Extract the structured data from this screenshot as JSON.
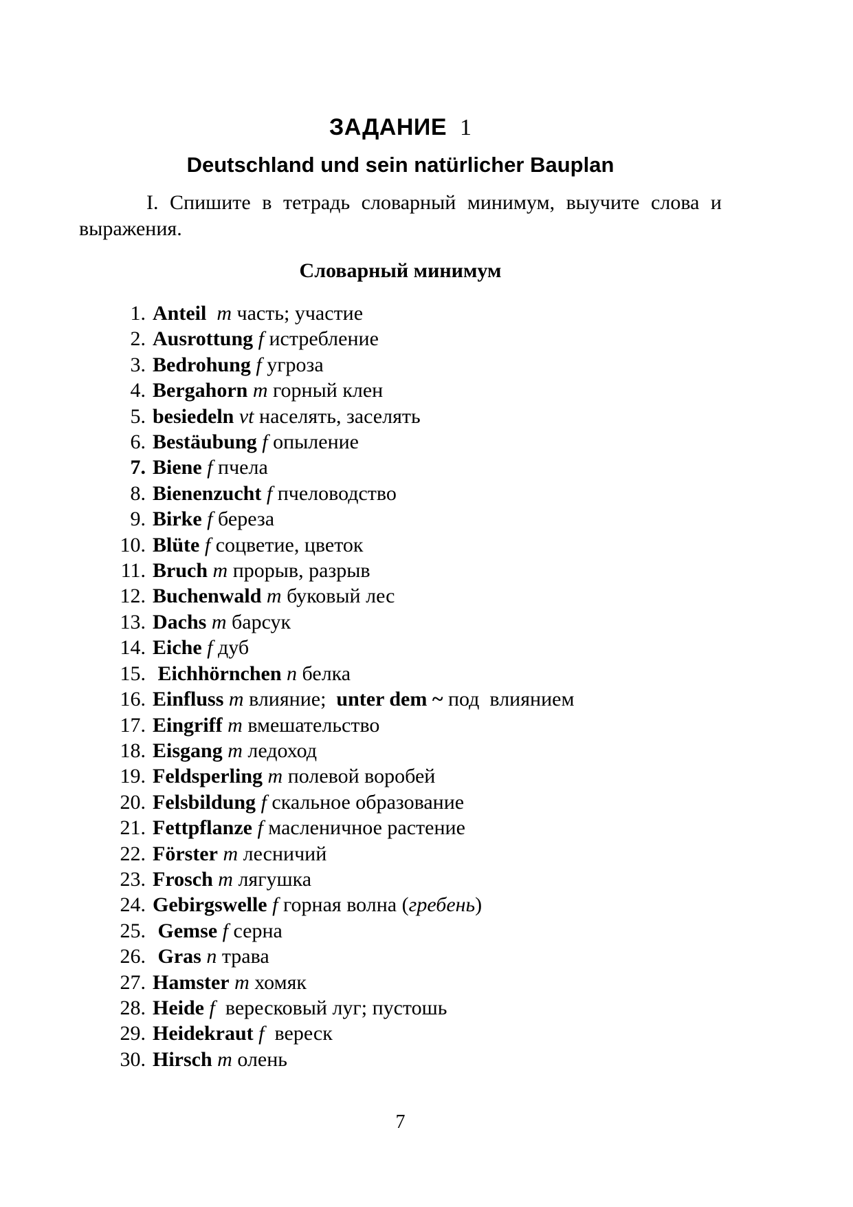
{
  "document": {
    "task_heading": {
      "label": "ЗАДАНИЕ",
      "number": "1"
    },
    "subtitle": "Deutschland und sein natürlicher Bauplan",
    "instruction": {
      "lines": [
        "I. Спишите в тетрадь словарный минимум, выучите слова и",
        "выражения."
      ]
    },
    "section_title": "Словарный минимум",
    "page_number": "7"
  },
  "vocabulary": {
    "items": [
      {
        "num": "1.",
        "num_bold": false,
        "runs": [
          [
            "b",
            "Anteil"
          ],
          [
            "r",
            "  "
          ],
          [
            "i",
            "m"
          ],
          [
            "r",
            " часть; участие"
          ]
        ]
      },
      {
        "num": "2.",
        "num_bold": false,
        "runs": [
          [
            "b",
            "Ausrottung"
          ],
          [
            "r",
            " "
          ],
          [
            "i",
            "f"
          ],
          [
            "r",
            " истребление"
          ]
        ]
      },
      {
        "num": "3.",
        "num_bold": false,
        "runs": [
          [
            "b",
            "Bedrohung"
          ],
          [
            "r",
            " "
          ],
          [
            "i",
            "f"
          ],
          [
            "r",
            " угроза"
          ]
        ]
      },
      {
        "num": "4.",
        "num_bold": false,
        "runs": [
          [
            "b",
            "Bergahorn"
          ],
          [
            "r",
            " "
          ],
          [
            "i",
            "m"
          ],
          [
            "r",
            " горный клен"
          ]
        ]
      },
      {
        "num": "5.",
        "num_bold": false,
        "runs": [
          [
            "b",
            "besiedeln"
          ],
          [
            "r",
            " "
          ],
          [
            "i",
            "vt"
          ],
          [
            "r",
            " населять, заселять"
          ]
        ]
      },
      {
        "num": "6.",
        "num_bold": false,
        "runs": [
          [
            "b",
            "Bestäubung"
          ],
          [
            "r",
            " "
          ],
          [
            "i",
            "f"
          ],
          [
            "r",
            " опыление"
          ]
        ]
      },
      {
        "num": "7.",
        "num_bold": true,
        "runs": [
          [
            "b",
            "Biene"
          ],
          [
            "r",
            " "
          ],
          [
            "i",
            "f"
          ],
          [
            "r",
            " пчела"
          ]
        ]
      },
      {
        "num": "8.",
        "num_bold": false,
        "runs": [
          [
            "b",
            "Bienenzucht"
          ],
          [
            "r",
            " "
          ],
          [
            "i",
            "f"
          ],
          [
            "r",
            " пчеловодство"
          ]
        ]
      },
      {
        "num": "9.",
        "num_bold": false,
        "runs": [
          [
            "b",
            "Birke"
          ],
          [
            "r",
            " "
          ],
          [
            "i",
            "f"
          ],
          [
            "r",
            " береза"
          ]
        ]
      },
      {
        "num": "10.",
        "num_bold": false,
        "runs": [
          [
            "b",
            "Blüte"
          ],
          [
            "r",
            " "
          ],
          [
            "i",
            "f"
          ],
          [
            "r",
            " соцветие, цветок"
          ]
        ]
      },
      {
        "num": "11.",
        "num_bold": false,
        "runs": [
          [
            "b",
            "Bruch"
          ],
          [
            "r",
            " "
          ],
          [
            "i",
            "m"
          ],
          [
            "r",
            " прорыв, разрыв"
          ]
        ]
      },
      {
        "num": "12.",
        "num_bold": false,
        "runs": [
          [
            "b",
            "Buchenwald"
          ],
          [
            "r",
            " "
          ],
          [
            "i",
            "m"
          ],
          [
            "r",
            " буковый лес"
          ]
        ]
      },
      {
        "num": "13.",
        "num_bold": false,
        "runs": [
          [
            "b",
            "Dachs"
          ],
          [
            "r",
            " "
          ],
          [
            "i",
            "m"
          ],
          [
            "r",
            " барсук"
          ]
        ]
      },
      {
        "num": "14.",
        "num_bold": false,
        "runs": [
          [
            "b",
            "Eiche"
          ],
          [
            "r",
            " "
          ],
          [
            "i",
            "f"
          ],
          [
            "r",
            " дуб"
          ]
        ]
      },
      {
        "num": "15.",
        "num_bold": false,
        "runs": [
          [
            "r",
            " "
          ],
          [
            "b",
            "Eichhörnchen"
          ],
          [
            "r",
            " "
          ],
          [
            "i",
            "n"
          ],
          [
            "r",
            " белка"
          ]
        ]
      },
      {
        "num": "16.",
        "num_bold": false,
        "runs": [
          [
            "b",
            "Einfluss"
          ],
          [
            "r",
            " "
          ],
          [
            "i",
            "m"
          ],
          [
            "r",
            " влияние;  "
          ],
          [
            "b",
            "unter dem ~"
          ],
          [
            "r",
            " под  влиянием"
          ]
        ]
      },
      {
        "num": "17.",
        "num_bold": false,
        "runs": [
          [
            "b",
            "Eingriff"
          ],
          [
            "r",
            " "
          ],
          [
            "i",
            "m"
          ],
          [
            "r",
            " вмешательство"
          ]
        ]
      },
      {
        "num": "18.",
        "num_bold": false,
        "runs": [
          [
            "b",
            "Eisgang"
          ],
          [
            "r",
            " "
          ],
          [
            "i",
            "m"
          ],
          [
            "r",
            " ледоход"
          ]
        ]
      },
      {
        "num": "19.",
        "num_bold": false,
        "runs": [
          [
            "b",
            "Feldsperling"
          ],
          [
            "r",
            " "
          ],
          [
            "i",
            "m"
          ],
          [
            "r",
            " полевой воробей"
          ]
        ]
      },
      {
        "num": "20.",
        "num_bold": false,
        "runs": [
          [
            "b",
            "Felsbildung"
          ],
          [
            "r",
            " "
          ],
          [
            "i",
            "f"
          ],
          [
            "r",
            " скальное образование"
          ]
        ]
      },
      {
        "num": "21.",
        "num_bold": false,
        "runs": [
          [
            "b",
            "Fettpflanze"
          ],
          [
            "r",
            " "
          ],
          [
            "i",
            "f"
          ],
          [
            "r",
            " масленичное растение"
          ]
        ]
      },
      {
        "num": "22.",
        "num_bold": false,
        "runs": [
          [
            "b",
            "Förster"
          ],
          [
            "r",
            " "
          ],
          [
            "i",
            "m"
          ],
          [
            "r",
            " лесничий"
          ]
        ]
      },
      {
        "num": "23.",
        "num_bold": false,
        "runs": [
          [
            "b",
            "Frosch"
          ],
          [
            "r",
            " "
          ],
          [
            "i",
            "m"
          ],
          [
            "r",
            " лягушка"
          ]
        ]
      },
      {
        "num": "24.",
        "num_bold": false,
        "runs": [
          [
            "b",
            "Gebirgswelle"
          ],
          [
            "r",
            " "
          ],
          [
            "i",
            "f"
          ],
          [
            "r",
            " горная волна ("
          ],
          [
            "i",
            "гребень"
          ],
          [
            "r",
            ")"
          ]
        ]
      },
      {
        "num": "25.",
        "num_bold": false,
        "runs": [
          [
            "r",
            " "
          ],
          [
            "b",
            "Gemse"
          ],
          [
            "r",
            " "
          ],
          [
            "i",
            "f"
          ],
          [
            "r",
            " серна"
          ]
        ]
      },
      {
        "num": "26.",
        "num_bold": false,
        "runs": [
          [
            "r",
            " "
          ],
          [
            "b",
            "Gras"
          ],
          [
            "r",
            " "
          ],
          [
            "i",
            "n"
          ],
          [
            "r",
            " трава"
          ]
        ]
      },
      {
        "num": "27.",
        "num_bold": false,
        "runs": [
          [
            "b",
            "Hamster"
          ],
          [
            "r",
            " "
          ],
          [
            "i",
            "m"
          ],
          [
            "r",
            " хомяк"
          ]
        ]
      },
      {
        "num": "28.",
        "num_bold": false,
        "runs": [
          [
            "b",
            "Heide"
          ],
          [
            "r",
            " "
          ],
          [
            "i",
            "f"
          ],
          [
            "r",
            "  вересковый луг; пустошь"
          ]
        ]
      },
      {
        "num": "29.",
        "num_bold": false,
        "runs": [
          [
            "b",
            "Heidekraut"
          ],
          [
            "r",
            " "
          ],
          [
            "i",
            "f"
          ],
          [
            "r",
            "  вереск"
          ]
        ]
      },
      {
        "num": "30.",
        "num_bold": false,
        "runs": [
          [
            "b",
            "Hirsch"
          ],
          [
            "r",
            " "
          ],
          [
            "i",
            "m"
          ],
          [
            "r",
            " олень"
          ]
        ]
      }
    ]
  }
}
